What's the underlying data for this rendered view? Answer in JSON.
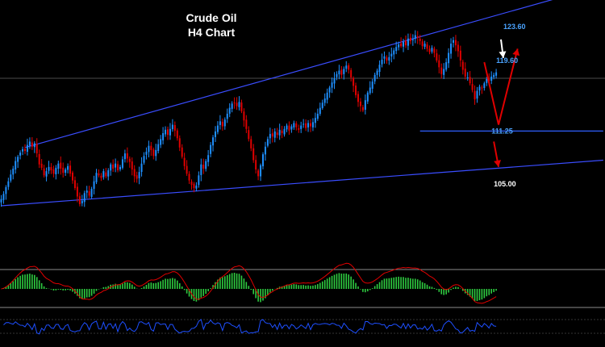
{
  "chart_data": {
    "type": "candlestick",
    "title": "Crude Oil",
    "subtitle": "H4 Chart",
    "y_scale": {
      "min": 96.0,
      "max": 126.0
    },
    "colors": {
      "bull": "#1e90ff",
      "bear": "#e00000",
      "channel": "#3a4dff",
      "level_line": "#2f5fff",
      "arrow_red": "#e00000",
      "arrow_white": "#ffffff",
      "label_blue": "#4aa3ff",
      "label_white": "#ffffff",
      "macd_hist": "#2ecc40",
      "macd_signal": "#e00000",
      "rsi_line": "#1e4fff",
      "panel_sep": "#8c8c8c",
      "grid": "#666666"
    },
    "closes": [
      103.2,
      103.8,
      104.6,
      105.3,
      106.1,
      106.8,
      107.7,
      108.2,
      108.7,
      109.1,
      108.9,
      109.6,
      110.0,
      109.4,
      109.8,
      108.6,
      107.3,
      106.9,
      106.0,
      106.5,
      107.0,
      106.6,
      106.2,
      106.9,
      107.4,
      106.8,
      106.3,
      106.7,
      107.1,
      106.2,
      105.4,
      104.5,
      103.5,
      102.6,
      103.0,
      103.9,
      104.2,
      103.6,
      104.4,
      105.3,
      106.3,
      106.0,
      105.7,
      106.5,
      105.9,
      106.6,
      107.3,
      106.8,
      107.4,
      106.6,
      107.0,
      107.9,
      108.6,
      108.0,
      107.6,
      106.7,
      105.9,
      105.6,
      106.4,
      107.4,
      108.3,
      108.8,
      109.5,
      109.0,
      108.3,
      109.0,
      109.7,
      110.3,
      111.0,
      111.4,
      110.8,
      111.5,
      112.0,
      111.3,
      110.4,
      109.3,
      108.2,
      107.1,
      106.2,
      105.4,
      104.9,
      104.5,
      104.8,
      106.0,
      107.3,
      106.8,
      107.7,
      108.4,
      109.6,
      110.5,
      111.2,
      111.9,
      112.4,
      111.8,
      112.6,
      113.3,
      114.0,
      114.5,
      114.6,
      114.2,
      114.7,
      113.6,
      112.5,
      111.5,
      110.3,
      109.2,
      107.8,
      106.7,
      105.9,
      107.2,
      108.5,
      109.4,
      110.3,
      110.9,
      110.6,
      111.2,
      110.8,
      111.4,
      111.0,
      111.5,
      111.9,
      111.3,
      111.8,
      112.2,
      111.7,
      111.4,
      111.9,
      112.1,
      111.6,
      112.2,
      111.8,
      112.3,
      112.8,
      113.3,
      114.0,
      114.6,
      115.1,
      115.8,
      116.4,
      117.0,
      117.5,
      118.0,
      118.4,
      117.9,
      118.6,
      119.0,
      118.5,
      117.6,
      116.6,
      115.5,
      114.7,
      114.2,
      113.7,
      114.9,
      115.8,
      116.4,
      117.1,
      117.9,
      118.4,
      119.1,
      119.7,
      120.1,
      119.6,
      120.0,
      120.4,
      120.8,
      121.2,
      121.5,
      121.3,
      121.8,
      121.4,
      122.2,
      121.9,
      122.1,
      122.6,
      122.3,
      121.9,
      121.3,
      121.6,
      121.0,
      120.6,
      121.1,
      120.5,
      119.6,
      118.8,
      118.0,
      118.6,
      119.4,
      120.5,
      121.6,
      122.0,
      121.4,
      120.7,
      119.6,
      118.5,
      117.7,
      117.6,
      116.9,
      116.1,
      115.0,
      116.0,
      116.5,
      116.3,
      116.9,
      117.4,
      117.2,
      117.7,
      117.9,
      118.2
    ],
    "channel_lines": [
      {
        "name": "upper",
        "from": [
          10,
          109.3
        ],
        "to": [
          253,
          128.5
        ]
      },
      {
        "name": "lower",
        "from": [
          0,
          102.4
        ],
        "to": [
          253,
          107.8
        ]
      }
    ],
    "horizontal_levels": [
      {
        "price": 111.25,
        "from": 176,
        "to": 253
      }
    ],
    "annotations": [
      {
        "text": "123.60",
        "bar": 211,
        "price": 123.6,
        "color": "label_blue"
      },
      {
        "text": "119.60",
        "bar": 208,
        "price": 119.6,
        "color": "label_blue"
      },
      {
        "text": "111.25",
        "bar": 206,
        "price": 111.25,
        "color": "label_blue"
      },
      {
        "text": "105.00",
        "bar": 207,
        "price": 105.0,
        "color": "label_white"
      }
    ],
    "projection_arrows": [
      {
        "color": "arrow_white",
        "points": [
          [
            210,
            122.1
          ],
          [
            211,
            119.9
          ]
        ]
      },
      {
        "color": "arrow_red",
        "points": [
          [
            203,
            119.4
          ],
          [
            209,
            112.0
          ],
          [
            217,
            121.0
          ]
        ]
      },
      {
        "color": "arrow_red",
        "points": [
          [
            207,
            110.0
          ],
          [
            209,
            107.0
          ]
        ]
      }
    ],
    "reference_line_price": 117.5
  }
}
